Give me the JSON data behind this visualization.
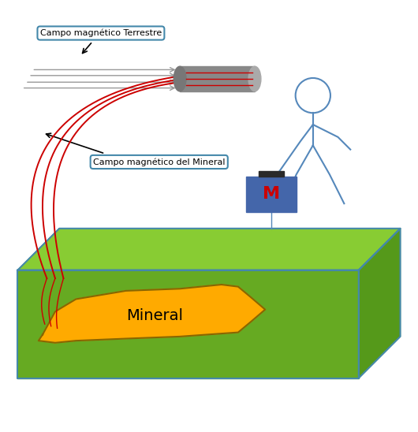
{
  "bg_color": "#ffffff",
  "ground_face_top": "#88cc33",
  "ground_face_front": "#66aa22",
  "ground_face_right": "#55991a",
  "ground_edge_color": "#4488aa",
  "mineral_color": "#ffaa00",
  "mineral_edge_color": "#886600",
  "magnetometer_color": "#4466aa",
  "cylinder_body_color": "#888888",
  "cylinder_end_color": "#aaaaaa",
  "red_line_color": "#cc0000",
  "blue_line_color": "#5588bb",
  "gray_line_color": "#999999",
  "text_color": "#000000",
  "label1": "Campo magnético Terrestre",
  "label2": "Campo magnético del Mineral",
  "label3": "Mineral",
  "label_M": "M",
  "label_M_color": "#cc0000",
  "figsize": [
    5.3,
    5.48
  ],
  "dpi": 100
}
